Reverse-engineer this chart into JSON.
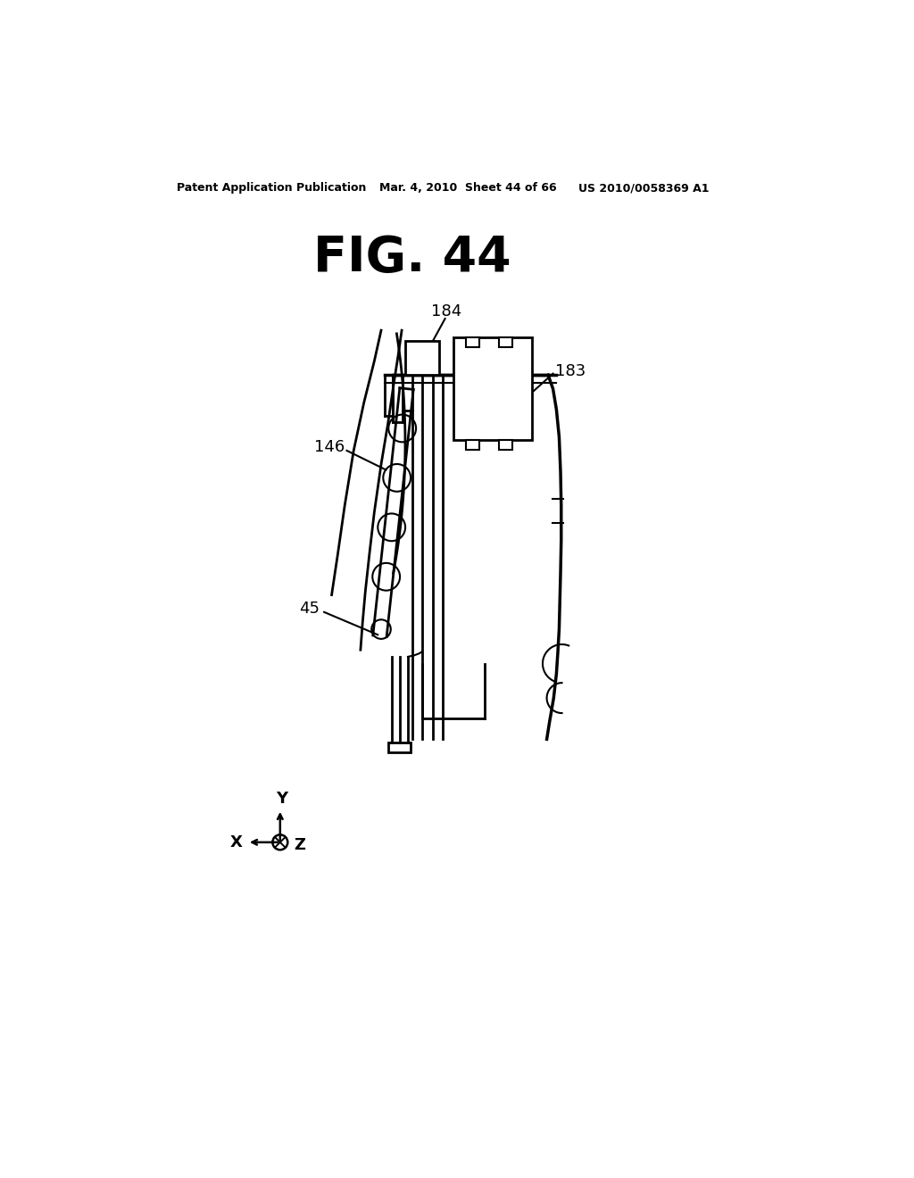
{
  "bg_color": "#ffffff",
  "title": "FIG. 44",
  "header_left": "Patent Application Publication",
  "header_mid": "Mar. 4, 2010  Sheet 44 of 66",
  "header_right": "US 2010/0058369 A1",
  "label_184": "184",
  "label_183": "183",
  "label_146": "146",
  "label_45": "45",
  "axis_x": "X",
  "axis_y": "Y",
  "axis_z": "Z"
}
